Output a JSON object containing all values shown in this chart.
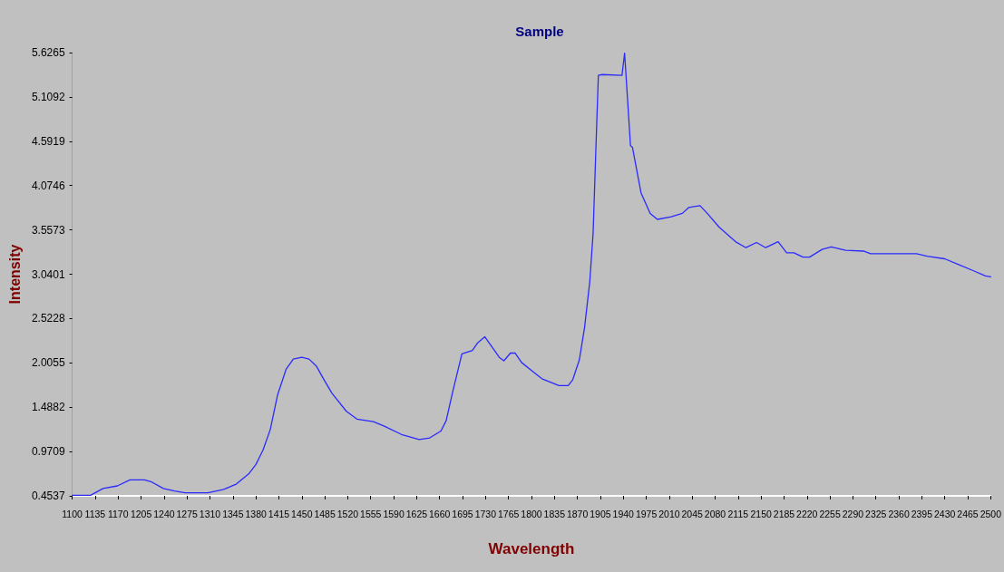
{
  "chart_data": {
    "type": "line",
    "title": "Sample",
    "xlabel": "Wavelength",
    "ylabel": "Intensity",
    "x": [
      1100,
      1128,
      1147,
      1169,
      1188,
      1210,
      1220,
      1239,
      1256,
      1272,
      1307,
      1331,
      1350,
      1369,
      1380,
      1391,
      1402,
      1413,
      1426,
      1437,
      1450,
      1461,
      1472,
      1483,
      1496,
      1518,
      1534,
      1559,
      1575,
      1602,
      1629,
      1645,
      1662,
      1670,
      1680,
      1694,
      1710,
      1718,
      1729,
      1751,
      1758,
      1768,
      1775,
      1785,
      1801,
      1816,
      1842,
      1856,
      1863,
      1873,
      1881,
      1889,
      1894,
      1898,
      1902,
      1908,
      1938,
      1942,
      1951,
      1954,
      1967,
      1981,
      1992,
      2013,
      2030,
      2040,
      2057,
      2068,
      2086,
      2111,
      2127,
      2143,
      2157,
      2176,
      2189,
      2200,
      2214,
      2224,
      2243,
      2257,
      2279,
      2306,
      2317,
      2387,
      2403,
      2430,
      2452,
      2474,
      2492,
      2500
    ],
    "series": [
      {
        "color": "#2a2aff",
        "values": [
          0.46,
          0.46,
          0.54,
          0.57,
          0.64,
          0.64,
          0.62,
          0.54,
          0.51,
          0.49,
          0.49,
          0.53,
          0.59,
          0.71,
          0.82,
          0.99,
          1.23,
          1.63,
          1.93,
          2.05,
          2.07,
          2.05,
          1.97,
          1.82,
          1.65,
          1.44,
          1.35,
          1.32,
          1.27,
          1.17,
          1.11,
          1.13,
          1.21,
          1.33,
          1.67,
          2.11,
          2.15,
          2.24,
          2.31,
          2.07,
          2.03,
          2.12,
          2.12,
          2.01,
          1.91,
          1.82,
          1.74,
          1.74,
          1.81,
          2.04,
          2.42,
          2.96,
          3.52,
          4.45,
          5.36,
          5.37,
          5.36,
          5.62,
          4.54,
          4.52,
          3.99,
          3.75,
          3.68,
          3.71,
          3.75,
          3.82,
          3.84,
          3.75,
          3.59,
          3.42,
          3.35,
          3.41,
          3.35,
          3.42,
          3.29,
          3.29,
          3.24,
          3.24,
          3.33,
          3.36,
          3.32,
          3.31,
          3.28,
          3.28,
          3.25,
          3.22,
          3.15,
          3.08,
          3.02,
          3.01
        ]
      }
    ],
    "xlim": [
      1100,
      2500
    ],
    "xticks": [
      1100,
      1135,
      1170,
      1205,
      1240,
      1275,
      1310,
      1345,
      1380,
      1415,
      1450,
      1485,
      1520,
      1555,
      1590,
      1625,
      1660,
      1695,
      1730,
      1765,
      1800,
      1835,
      1870,
      1905,
      1940,
      1975,
      2010,
      2045,
      2080,
      2115,
      2150,
      2185,
      2220,
      2255,
      2290,
      2325,
      2360,
      2395,
      2430,
      2465,
      2500
    ],
    "ylim": [
      0.4537,
      5.6265
    ],
    "yticks": [
      0.4537,
      0.9709,
      1.4882,
      2.0055,
      2.5228,
      3.0401,
      3.5573,
      4.0746,
      4.5919,
      5.1092,
      5.6265
    ],
    "grid": false,
    "marker": "none",
    "line_style": "solid"
  }
}
